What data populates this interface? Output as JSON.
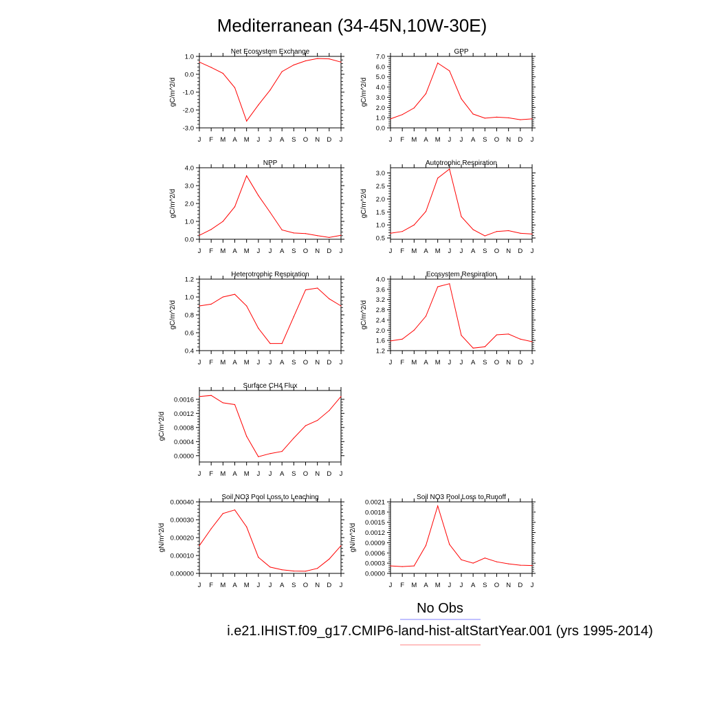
{
  "title": "Mediterranean (34-45N,10W-30E)",
  "legend": {
    "entries": [
      {
        "label": "No Obs",
        "color": "#8080ff"
      },
      {
        "label": "i.e21.IHIST.f09_g17.CMIP6-land-hist-altStartYear.001 (yrs 1995-2014)",
        "color": "#ff8080"
      }
    ]
  },
  "colors": {
    "series": "#ff0000",
    "axis": "#000000"
  },
  "chart_data": [
    {
      "type": "line",
      "title": "Net Ecosystem Exchange",
      "ylabel": "gC/m^2/d",
      "categories": [
        "J",
        "F",
        "M",
        "A",
        "M",
        "J",
        "J",
        "A",
        "S",
        "O",
        "N",
        "D",
        "J"
      ],
      "yticks": [
        "-3.0",
        "-2.0",
        "-1.0",
        "0.0",
        "1.0"
      ],
      "ylim": [
        -3.0,
        1.0
      ],
      "values": [
        0.68,
        0.38,
        0.05,
        -0.75,
        -2.62,
        -1.72,
        -0.88,
        0.15,
        0.52,
        0.75,
        0.88,
        0.86,
        0.68
      ]
    },
    {
      "type": "line",
      "title": "GPP",
      "ylabel": "gC/m^2/d",
      "categories": [
        "J",
        "F",
        "M",
        "A",
        "M",
        "J",
        "J",
        "A",
        "S",
        "O",
        "N",
        "D",
        "J"
      ],
      "yticks": [
        "0.0",
        "1.0",
        "2.0",
        "3.0",
        "4.0",
        "5.0",
        "6.0",
        "7.0"
      ],
      "ylim": [
        0.0,
        7.0
      ],
      "values": [
        0.88,
        1.3,
        1.95,
        3.35,
        6.35,
        5.58,
        2.85,
        1.35,
        0.95,
        1.05,
        0.98,
        0.8,
        0.88
      ]
    },
    {
      "type": "line",
      "title": "NPP",
      "ylabel": "gC/m^2/d",
      "categories": [
        "J",
        "F",
        "M",
        "A",
        "M",
        "J",
        "J",
        "A",
        "S",
        "O",
        "N",
        "D",
        "J"
      ],
      "yticks": [
        "0.0",
        "1.0",
        "2.0",
        "3.0",
        "4.0"
      ],
      "ylim": [
        0.0,
        4.0
      ],
      "values": [
        0.22,
        0.55,
        1.0,
        1.82,
        3.55,
        2.45,
        1.5,
        0.52,
        0.35,
        0.32,
        0.2,
        0.1,
        0.22
      ]
    },
    {
      "type": "line",
      "title": "Autotrophic Respiration",
      "ylabel": "gC/m^2/d",
      "categories": [
        "J",
        "F",
        "M",
        "A",
        "M",
        "J",
        "J",
        "A",
        "S",
        "O",
        "N",
        "D",
        "J"
      ],
      "yticks": [
        "0.5",
        "1.0",
        "1.5",
        "2.0",
        "2.5",
        "3.0"
      ],
      "ylim": [
        0.45,
        3.2
      ],
      "values": [
        0.68,
        0.75,
        1.0,
        1.52,
        2.8,
        3.15,
        1.32,
        0.82,
        0.58,
        0.75,
        0.78,
        0.68,
        0.65
      ]
    },
    {
      "type": "line",
      "title": "Heterotrophic Respiration",
      "ylabel": "gC/m^2/d",
      "categories": [
        "J",
        "F",
        "M",
        "A",
        "M",
        "J",
        "J",
        "A",
        "S",
        "O",
        "N",
        "D",
        "J"
      ],
      "yticks": [
        "0.4",
        "0.6",
        "0.8",
        "1.0",
        "1.2"
      ],
      "ylim": [
        0.4,
        1.2
      ],
      "values": [
        0.9,
        0.92,
        1.0,
        1.03,
        0.9,
        0.65,
        0.48,
        0.48,
        0.78,
        1.08,
        1.1,
        0.98,
        0.9
      ]
    },
    {
      "type": "line",
      "title": "Ecosystem Respiration",
      "ylabel": "gC/m^2/d",
      "categories": [
        "J",
        "F",
        "M",
        "A",
        "M",
        "J",
        "J",
        "A",
        "S",
        "O",
        "N",
        "D",
        "J"
      ],
      "yticks": [
        "1.2",
        "1.6",
        "2.0",
        "2.4",
        "2.8",
        "3.2",
        "3.6",
        "4.0"
      ],
      "ylim": [
        1.2,
        4.0
      ],
      "values": [
        1.58,
        1.65,
        2.0,
        2.55,
        3.7,
        3.82,
        1.8,
        1.3,
        1.35,
        1.82,
        1.85,
        1.65,
        1.55
      ]
    },
    {
      "type": "line",
      "title": "Surface CH4 Flux",
      "ylabel": "gC/m^2/d",
      "categories": [
        "J",
        "F",
        "M",
        "A",
        "M",
        "J",
        "J",
        "A",
        "S",
        "O",
        "N",
        "D",
        "J"
      ],
      "yticks": [
        "0.0000",
        "0.0004",
        "0.0008",
        "0.0012",
        "0.0016"
      ],
      "ylim": [
        -0.00018,
        0.00185
      ],
      "values": [
        0.00168,
        0.00171,
        0.0015,
        0.00145,
        0.00055,
        -3e-05,
        6e-05,
        0.00012,
        0.0005,
        0.00085,
        0.001,
        0.00128,
        0.00168
      ]
    },
    {
      "type": "line",
      "title": "Soil NO3 Pool Loss to Leaching",
      "ylabel": "gN/m^2/d",
      "categories": [
        "J",
        "F",
        "M",
        "A",
        "M",
        "J",
        "J",
        "A",
        "S",
        "O",
        "N",
        "D",
        "J"
      ],
      "yticks": [
        "0.00000",
        "0.00010",
        "0.00020",
        "0.00030",
        "0.00040"
      ],
      "ylim": [
        0.0,
        0.0004
      ],
      "values": [
        0.000155,
        0.00025,
        0.000335,
        0.000355,
        0.00026,
        9e-05,
        3.5e-05,
        2e-05,
        1.3e-05,
        1.2e-05,
        2.8e-05,
        8e-05,
        0.000155
      ]
    },
    {
      "type": "line",
      "title": "Soil NO3 Pool Loss to Runoff",
      "ylabel": "gN/m^2/d",
      "categories": [
        "J",
        "F",
        "M",
        "A",
        "M",
        "J",
        "J",
        "A",
        "S",
        "O",
        "N",
        "D",
        "J"
      ],
      "yticks": [
        "0.0000",
        "0.0003",
        "0.0006",
        "0.0009",
        "0.0012",
        "0.0015",
        "0.0018",
        "0.0021"
      ],
      "ylim": [
        0.0,
        0.0021
      ],
      "values": [
        0.00022,
        0.0002,
        0.00022,
        0.00082,
        0.00198,
        0.00085,
        0.0004,
        0.0003,
        0.00045,
        0.00034,
        0.00028,
        0.00024,
        0.00023
      ]
    }
  ]
}
